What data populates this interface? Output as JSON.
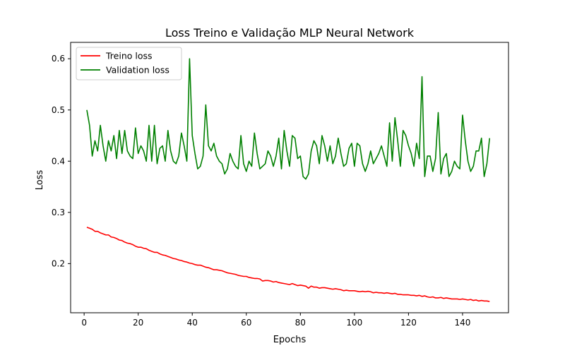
{
  "chart_data": {
    "type": "line",
    "title": "Loss Treino e Validação MLP Neural Network",
    "xlabel": "Epochs",
    "ylabel": "Loss",
    "xlim": [
      -5,
      157
    ],
    "ylim": [
      0.104,
      0.632
    ],
    "xticks": [
      0,
      20,
      40,
      60,
      80,
      100,
      120,
      140
    ],
    "yticks": [
      0.2,
      0.3,
      0.4,
      0.5,
      0.6
    ],
    "xtick_labels": [
      "0",
      "20",
      "40",
      "60",
      "80",
      "100",
      "120",
      "140"
    ],
    "ytick_labels": [
      "0.2",
      "0.3",
      "0.4",
      "0.5",
      "0.6"
    ],
    "legend_position": "upper-left",
    "grid": false,
    "series": [
      {
        "name": "Treino loss",
        "color": "#ff0000",
        "x_start": 1,
        "values": [
          0.271,
          0.269,
          0.267,
          0.263,
          0.263,
          0.26,
          0.258,
          0.256,
          0.256,
          0.252,
          0.251,
          0.249,
          0.246,
          0.245,
          0.242,
          0.24,
          0.239,
          0.237,
          0.234,
          0.232,
          0.232,
          0.23,
          0.229,
          0.226,
          0.224,
          0.222,
          0.222,
          0.219,
          0.217,
          0.216,
          0.214,
          0.212,
          0.21,
          0.209,
          0.207,
          0.206,
          0.204,
          0.203,
          0.201,
          0.2,
          0.198,
          0.197,
          0.197,
          0.195,
          0.193,
          0.192,
          0.19,
          0.188,
          0.188,
          0.187,
          0.186,
          0.184,
          0.182,
          0.181,
          0.18,
          0.179,
          0.177,
          0.176,
          0.175,
          0.175,
          0.173,
          0.172,
          0.171,
          0.171,
          0.17,
          0.166,
          0.167,
          0.167,
          0.166,
          0.164,
          0.165,
          0.163,
          0.162,
          0.161,
          0.16,
          0.159,
          0.161,
          0.159,
          0.157,
          0.158,
          0.157,
          0.156,
          0.152,
          0.156,
          0.154,
          0.154,
          0.152,
          0.153,
          0.153,
          0.152,
          0.151,
          0.15,
          0.151,
          0.15,
          0.149,
          0.147,
          0.148,
          0.147,
          0.147,
          0.147,
          0.146,
          0.145,
          0.146,
          0.145,
          0.146,
          0.145,
          0.143,
          0.144,
          0.143,
          0.143,
          0.142,
          0.143,
          0.142,
          0.141,
          0.142,
          0.14,
          0.14,
          0.139,
          0.139,
          0.139,
          0.138,
          0.138,
          0.137,
          0.138,
          0.136,
          0.137,
          0.135,
          0.134,
          0.135,
          0.133,
          0.133,
          0.134,
          0.132,
          0.133,
          0.132,
          0.131,
          0.131,
          0.131,
          0.13,
          0.131,
          0.13,
          0.129,
          0.13,
          0.128,
          0.129,
          0.127,
          0.128,
          0.127,
          0.127,
          0.126
        ]
      },
      {
        "name": "Validation loss",
        "color": "#008000",
        "x_start": 1,
        "values": [
          0.5,
          0.47,
          0.41,
          0.44,
          0.42,
          0.47,
          0.43,
          0.4,
          0.44,
          0.42,
          0.45,
          0.405,
          0.46,
          0.415,
          0.46,
          0.42,
          0.41,
          0.405,
          0.465,
          0.415,
          0.43,
          0.42,
          0.4,
          0.47,
          0.4,
          0.47,
          0.395,
          0.425,
          0.43,
          0.4,
          0.46,
          0.42,
          0.4,
          0.395,
          0.41,
          0.455,
          0.43,
          0.4,
          0.6,
          0.45,
          0.415,
          0.385,
          0.39,
          0.41,
          0.51,
          0.43,
          0.42,
          0.435,
          0.41,
          0.4,
          0.395,
          0.375,
          0.385,
          0.415,
          0.4,
          0.39,
          0.385,
          0.45,
          0.395,
          0.38,
          0.4,
          0.39,
          0.455,
          0.415,
          0.385,
          0.39,
          0.395,
          0.42,
          0.41,
          0.39,
          0.41,
          0.445,
          0.385,
          0.46,
          0.42,
          0.39,
          0.45,
          0.445,
          0.405,
          0.41,
          0.37,
          0.365,
          0.375,
          0.42,
          0.44,
          0.43,
          0.395,
          0.45,
          0.43,
          0.4,
          0.43,
          0.395,
          0.41,
          0.445,
          0.415,
          0.39,
          0.395,
          0.425,
          0.435,
          0.39,
          0.435,
          0.43,
          0.395,
          0.38,
          0.395,
          0.42,
          0.395,
          0.405,
          0.415,
          0.43,
          0.41,
          0.39,
          0.475,
          0.4,
          0.485,
          0.44,
          0.39,
          0.46,
          0.45,
          0.43,
          0.415,
          0.39,
          0.435,
          0.405,
          0.565,
          0.37,
          0.41,
          0.41,
          0.38,
          0.405,
          0.495,
          0.375,
          0.405,
          0.415,
          0.37,
          0.38,
          0.4,
          0.39,
          0.385,
          0.49,
          0.44,
          0.4,
          0.38,
          0.39,
          0.42,
          0.42,
          0.445,
          0.37,
          0.395,
          0.445
        ]
      }
    ]
  }
}
